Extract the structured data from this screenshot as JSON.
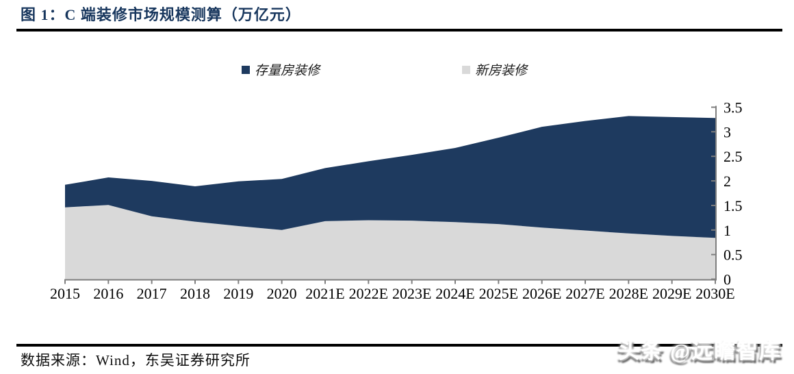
{
  "figure": {
    "title": "图 1：C 端装修市场规模测算（万亿元）"
  },
  "legend": [
    {
      "label": "存量房装修",
      "color": "#1E3A5F"
    },
    {
      "label": "新房装修",
      "color": "#D9D9D9"
    }
  ],
  "footer": {
    "source": "数据来源：Wind，东吴证券研究所"
  },
  "watermark": {
    "text": "头条 @远瞻智库"
  },
  "colors": {
    "title_navy": "#17365D",
    "area_navy": "#1E3A5F",
    "area_gray": "#D9D9D9",
    "axis_gray": "#7F7F7F",
    "tick_label": "#000000"
  },
  "chart_data": {
    "type": "area",
    "stacked": true,
    "title": "C 端装修市场规模测算（万亿元）",
    "xlabel": "",
    "ylabel": "",
    "categories": [
      "2015",
      "2016",
      "2017",
      "2018",
      "2019",
      "2020",
      "2021E",
      "2022E",
      "2023E",
      "2024E",
      "2025E",
      "2026E",
      "2027E",
      "2028E",
      "2029E",
      "2030E"
    ],
    "series": [
      {
        "name": "新房装修",
        "color": "#D9D9D9",
        "values": [
          1.46,
          1.51,
          1.28,
          1.17,
          1.08,
          1.0,
          1.18,
          1.2,
          1.19,
          1.16,
          1.12,
          1.05,
          0.99,
          0.93,
          0.88,
          0.84
        ]
      },
      {
        "name": "存量房装修",
        "color": "#1E3A5F",
        "values": [
          0.46,
          0.56,
          0.72,
          0.72,
          0.91,
          1.04,
          1.08,
          1.2,
          1.34,
          1.51,
          1.76,
          2.05,
          2.23,
          2.39,
          2.42,
          2.44
        ]
      }
    ],
    "stack_order_bottom_to_top": [
      "新房装修",
      "存量房装修"
    ],
    "ylim": [
      0,
      3.5
    ],
    "yticks": [
      "0",
      "0.5",
      "1",
      "1.5",
      "2",
      "2.5",
      "3",
      "3.5"
    ],
    "y_axis_side": "right",
    "grid": false,
    "legend_position": "top-center"
  }
}
